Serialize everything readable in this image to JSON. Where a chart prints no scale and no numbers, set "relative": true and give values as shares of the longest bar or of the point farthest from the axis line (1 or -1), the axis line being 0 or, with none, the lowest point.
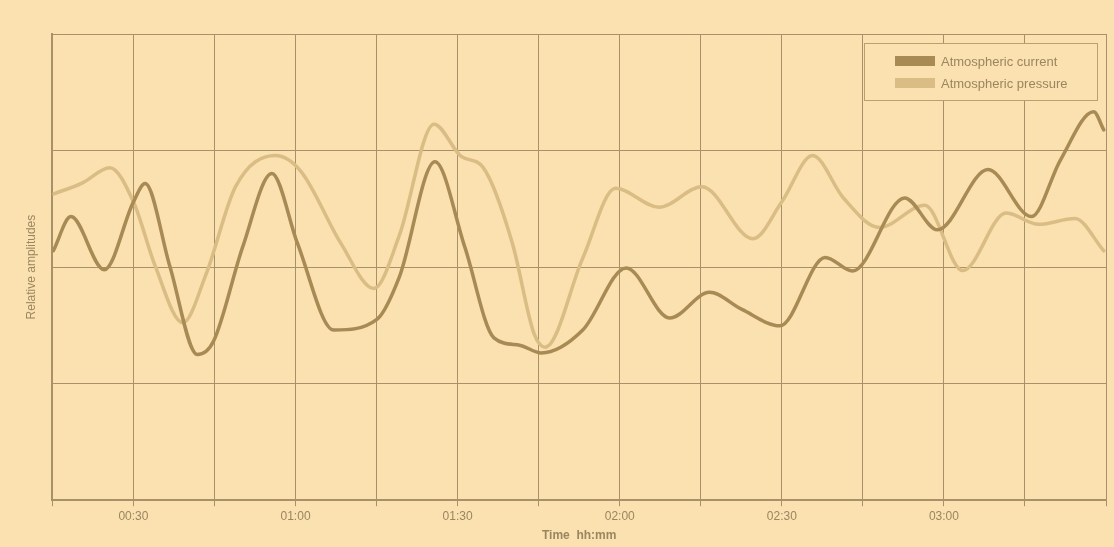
{
  "chart_data": {
    "type": "line",
    "xlabel": "Time  hh:mm",
    "ylabel": "Relative amplitudes",
    "relative": true,
    "grid": true,
    "legend": "top right",
    "marker": "none",
    "line_style": "solid",
    "xlim": [
      0.25,
      3.5
    ],
    "xticks": [
      {
        "value": 0.25,
        "label": null
      },
      {
        "value": 0.5,
        "label": "00:30"
      },
      {
        "value": 0.75,
        "label": null
      },
      {
        "value": 1,
        "label": "01:00"
      },
      {
        "value": 1.25,
        "label": null
      },
      {
        "value": 1.5,
        "label": "01:30"
      },
      {
        "value": 1.75,
        "label": null
      },
      {
        "value": 2,
        "label": "02:00"
      },
      {
        "value": 2.25,
        "label": null
      },
      {
        "value": 2.5,
        "label": "02:30"
      },
      {
        "value": 2.75,
        "label": null
      },
      {
        "value": 3,
        "label": "03:00"
      },
      {
        "value": 3.25,
        "label": null
      },
      {
        "value": 3.5,
        "label": null
      }
    ],
    "series": [
      {
        "name": "Atmospheric current",
        "color": "#a88a55",
        "x": [
          0.253,
          0.307,
          0.41,
          0.5,
          0.536,
          0.612,
          0.697,
          0.747,
          0.837,
          0.927,
          1.006,
          1.118,
          1.253,
          1.32,
          1.43,
          1.522,
          1.612,
          1.691,
          1.758,
          1.886,
          2.02,
          2.154,
          2.277,
          2.377,
          2.494,
          2.634,
          2.718,
          2.879,
          2.98,
          3.136,
          3.27,
          3.359,
          3.462,
          3.493
        ],
        "values": [
          0.642,
          0.73,
          0.593,
          0.768,
          0.815,
          0.603,
          0.375,
          0.409,
          0.652,
          0.841,
          0.661,
          0.438,
          0.467,
          0.574,
          0.871,
          0.652,
          0.418,
          0.399,
          0.379,
          0.438,
          0.598,
          0.469,
          0.535,
          0.491,
          0.449,
          0.625,
          0.59,
          0.778,
          0.696,
          0.851,
          0.73,
          0.875,
          1,
          0.953
        ]
      },
      {
        "name": "Atmospheric pressure",
        "color": "#d9bd85",
        "x": [
          0.253,
          0.343,
          0.427,
          0.5,
          0.567,
          0.652,
          0.725,
          0.815,
          0.938,
          1.017,
          1.14,
          1.242,
          1.32,
          1.427,
          1.511,
          1.579,
          1.669,
          1.736,
          1.77,
          1.886,
          1.987,
          2.121,
          2.254,
          2.411,
          2.5,
          2.595,
          2.69,
          2.801,
          2.941,
          3.058,
          3.192,
          3.292,
          3.404,
          3.493
        ],
        "values": [
          0.788,
          0.817,
          0.856,
          0.768,
          0.603,
          0.457,
          0.584,
          0.807,
          0.887,
          0.846,
          0.661,
          0.545,
          0.681,
          0.968,
          0.885,
          0.856,
          0.661,
          0.428,
          0.394,
          0.623,
          0.803,
          0.754,
          0.807,
          0.673,
          0.768,
          0.887,
          0.778,
          0.702,
          0.759,
          0.591,
          0.739,
          0.71,
          0.725,
          0.642
        ]
      }
    ]
  }
}
